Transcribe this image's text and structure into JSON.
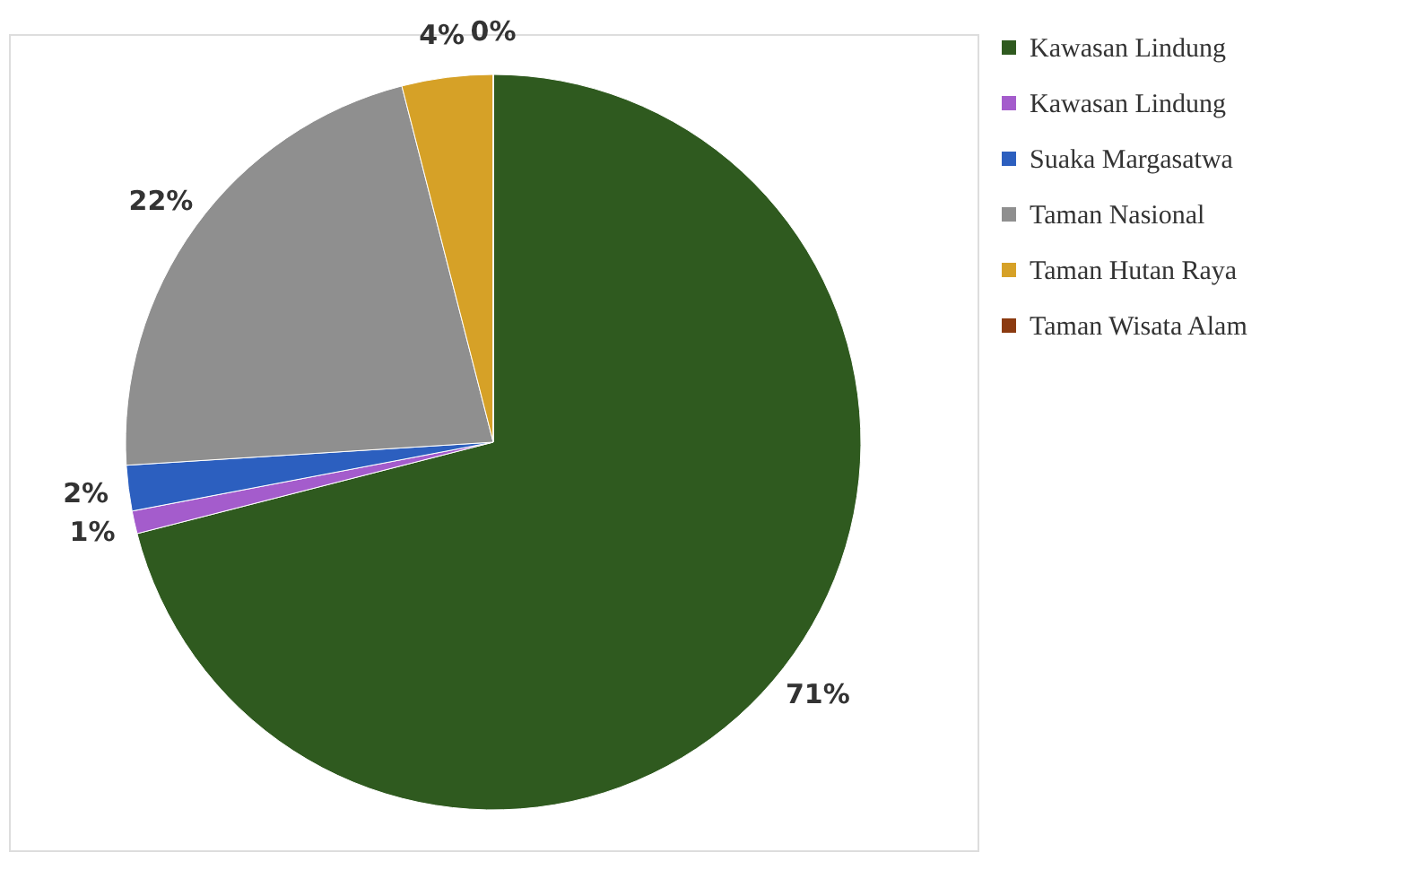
{
  "chart_data": {
    "type": "pie",
    "categories": [
      "Kawasan Lindung",
      "Kawasan Lindung",
      "Suaka Margasatwa",
      "Taman Nasional",
      "Taman Hutan Raya",
      "Taman Wisata Alam"
    ],
    "values": [
      71,
      1,
      2,
      22,
      4,
      0
    ],
    "value_labels": [
      "71%",
      "1%",
      "2%",
      "22%",
      "4%",
      "0%"
    ],
    "colors": [
      "#2f5a1f",
      "#a45ccc",
      "#2c5fbf",
      "#8f8f8f",
      "#d6a127",
      "#8b3a10"
    ],
    "legend": "right"
  }
}
